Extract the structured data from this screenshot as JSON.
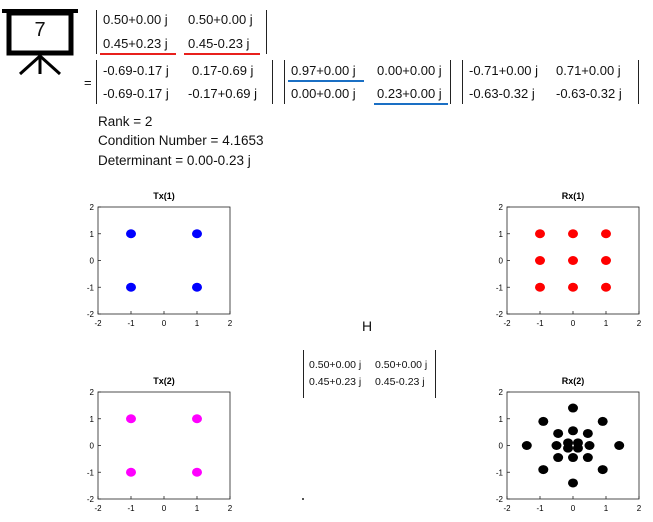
{
  "slide_number": "7",
  "equals_sign": "=",
  "H_label": "H",
  "matrix_H": {
    "rows": [
      [
        "0.50+0.00 j",
        "0.50+0.00 j"
      ],
      [
        "0.45+0.23 j",
        "0.45-0.23 j"
      ]
    ],
    "underline_color": "#e8201c"
  },
  "matrix_U": {
    "rows": [
      [
        "-0.69-0.17 j",
        "0.17-0.69 j"
      ],
      [
        "-0.69-0.17 j",
        "-0.17+0.69 j"
      ]
    ]
  },
  "matrix_S": {
    "rows": [
      [
        "0.97+0.00 j",
        "0.00+0.00 j"
      ],
      [
        "0.00+0.00 j",
        "0.23+0.00 j"
      ]
    ],
    "underline_color": "#1a6fc4"
  },
  "matrix_V": {
    "rows": [
      [
        "-0.71+0.00 j",
        "0.71+0.00 j"
      ],
      [
        "-0.63-0.32 j",
        "-0.63-0.32 j"
      ]
    ]
  },
  "info": {
    "rank": "Rank = 2",
    "condition_number": "Condition Number = 4.1653",
    "determinant": "Determinant = 0.00-0.23 j"
  },
  "matrix_H_small": {
    "rows": [
      [
        "0.50+0.00 j",
        "0.50+0.00 j"
      ],
      [
        "0.45+0.23 j",
        "0.45-0.23 j"
      ]
    ]
  },
  "chart_data": [
    {
      "type": "scatter",
      "title": "Tx(1)",
      "color": "#0000ff",
      "xlim": [
        -2,
        2
      ],
      "ylim": [
        -2,
        2
      ],
      "xticks": [
        "-2",
        "-1",
        "0",
        "1",
        "2"
      ],
      "yticks": [
        "2",
        "1",
        "0",
        "-1",
        "-2"
      ],
      "points": [
        [
          -1,
          1
        ],
        [
          1,
          1
        ],
        [
          -1,
          -1
        ],
        [
          1,
          -1
        ]
      ]
    },
    {
      "type": "scatter",
      "title": "Rx(1)",
      "color": "#ff0000",
      "xlim": [
        -2,
        2
      ],
      "ylim": [
        -2,
        2
      ],
      "xticks": [
        "-2",
        "-1",
        "0",
        "1",
        "2"
      ],
      "yticks": [
        "2",
        "1",
        "0",
        "-1",
        "-2"
      ],
      "points": [
        [
          -1,
          1
        ],
        [
          0,
          1
        ],
        [
          1,
          1
        ],
        [
          -1,
          0
        ],
        [
          0,
          0
        ],
        [
          1,
          0
        ],
        [
          -1,
          -1
        ],
        [
          0,
          -1
        ],
        [
          1,
          -1
        ]
      ]
    },
    {
      "type": "scatter",
      "title": "Tx(2)",
      "color": "#ff00ff",
      "xlim": [
        -2,
        2
      ],
      "ylim": [
        -2,
        2
      ],
      "xticks": [
        "-2",
        "-1",
        "0",
        "1",
        "2"
      ],
      "yticks": [
        "2",
        "1",
        "0",
        "-1",
        "-2"
      ],
      "points": [
        [
          -1,
          1
        ],
        [
          1,
          1
        ],
        [
          -1,
          -1
        ],
        [
          1,
          -1
        ]
      ]
    },
    {
      "type": "scatter",
      "title": "Rx(2)",
      "color": "#000000",
      "xlim": [
        -2,
        2
      ],
      "ylim": [
        -2,
        2
      ],
      "xticks": [
        "-2",
        "-1",
        "0",
        "1",
        "2"
      ],
      "yticks": [
        "2",
        "1",
        "0",
        "-1",
        "-2"
      ],
      "points": [
        [
          0,
          1.4
        ],
        [
          -0.9,
          0.9
        ],
        [
          0.9,
          0.9
        ],
        [
          -0.45,
          0.45
        ],
        [
          0,
          0.55
        ],
        [
          0.45,
          0.45
        ],
        [
          -1.4,
          0
        ],
        [
          -0.5,
          0
        ],
        [
          -0.15,
          0.1
        ],
        [
          0.15,
          0.1
        ],
        [
          0.5,
          0
        ],
        [
          1.4,
          0
        ],
        [
          -0.45,
          -0.45
        ],
        [
          0,
          -0.45
        ],
        [
          0.45,
          -0.45
        ],
        [
          -0.15,
          -0.1
        ],
        [
          0.15,
          -0.1
        ],
        [
          -0.9,
          -0.9
        ],
        [
          0.9,
          -0.9
        ],
        [
          0,
          -1.4
        ]
      ]
    }
  ]
}
